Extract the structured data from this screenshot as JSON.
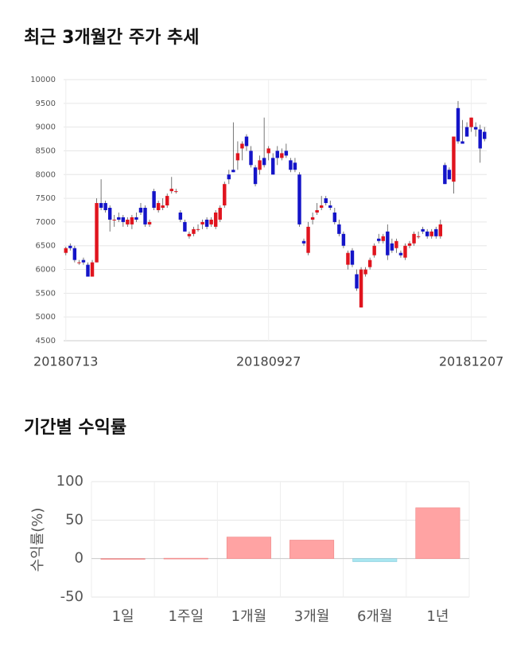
{
  "chart_data": [
    {
      "type": "candlestick",
      "title": "최근 3개월간 주가 추세",
      "categories": [
        "20180713",
        null,
        null,
        null,
        null,
        null,
        null,
        null,
        null,
        null,
        null,
        null,
        null,
        null,
        null,
        null,
        null,
        null,
        null,
        null,
        null,
        null,
        null,
        null,
        null,
        null,
        null,
        null,
        null,
        null,
        null,
        null,
        null,
        null,
        null,
        null,
        null,
        null,
        null,
        null,
        null,
        null,
        null,
        null,
        null,
        null,
        "20180927",
        null,
        null,
        null,
        null,
        null,
        null,
        null,
        null,
        null,
        null,
        null,
        null,
        null,
        null,
        null,
        null,
        null,
        null,
        null,
        null,
        null,
        null,
        null,
        null,
        null,
        null,
        null,
        null,
        null,
        null,
        null,
        null,
        null,
        null,
        null,
        null,
        null,
        null,
        null,
        null,
        null,
        null,
        null,
        null,
        null,
        "20181207",
        null,
        null,
        null
      ],
      "ohlc": [
        [
          6350,
          6480,
          6300,
          6450
        ],
        [
          6500,
          6550,
          6400,
          6450
        ],
        [
          6450,
          6500,
          6150,
          6200
        ],
        [
          6150,
          6200,
          6100,
          6150
        ],
        [
          6200,
          6250,
          6100,
          6150
        ],
        [
          6100,
          6150,
          5850,
          5850
        ],
        [
          5850,
          6200,
          5850,
          6150
        ],
        [
          6150,
          7500,
          6150,
          7400
        ],
        [
          7400,
          7900,
          7250,
          7300
        ],
        [
          7400,
          7450,
          7200,
          7250
        ],
        [
          7300,
          7350,
          6800,
          7050
        ],
        [
          7050,
          7150,
          6900,
          7050
        ],
        [
          7100,
          7200,
          7000,
          7050
        ],
        [
          7100,
          7150,
          6900,
          7000
        ],
        [
          6950,
          7100,
          6900,
          7050
        ],
        [
          6950,
          7150,
          6850,
          7100
        ],
        [
          7100,
          7200,
          7000,
          7050
        ],
        [
          7300,
          7400,
          7150,
          7200
        ],
        [
          7300,
          7350,
          6900,
          6950
        ],
        [
          6950,
          7050,
          6900,
          7000
        ],
        [
          7650,
          7700,
          7250,
          7300
        ],
        [
          7250,
          7450,
          7200,
          7400
        ],
        [
          7300,
          7500,
          7250,
          7350
        ],
        [
          7350,
          7600,
          7300,
          7550
        ],
        [
          7650,
          7950,
          7600,
          7700
        ],
        [
          7650,
          7700,
          7600,
          7650
        ],
        [
          7200,
          7250,
          7000,
          7050
        ],
        [
          7000,
          7050,
          6800,
          6800
        ],
        [
          6700,
          6800,
          6650,
          6750
        ],
        [
          6750,
          6900,
          6700,
          6850
        ],
        [
          6850,
          6950,
          6800,
          6850
        ],
        [
          6950,
          7050,
          6850,
          7000
        ],
        [
          7050,
          7100,
          6850,
          6900
        ],
        [
          6950,
          7100,
          6900,
          7050
        ],
        [
          6900,
          7250,
          6850,
          7200
        ],
        [
          7050,
          7350,
          7000,
          7300
        ],
        [
          7350,
          7850,
          7300,
          7800
        ],
        [
          8000,
          8100,
          7800,
          7900
        ],
        [
          8100,
          9100,
          8050,
          8050
        ],
        [
          8300,
          8700,
          8100,
          8450
        ],
        [
          8550,
          8700,
          8300,
          8650
        ],
        [
          8800,
          8850,
          8500,
          8600
        ],
        [
          8500,
          8600,
          8150,
          8200
        ],
        [
          8150,
          8200,
          7750,
          7800
        ],
        [
          8100,
          8400,
          8000,
          8300
        ],
        [
          8350,
          9200,
          8150,
          8200
        ],
        [
          8450,
          8600,
          8300,
          8550
        ],
        [
          8350,
          8450,
          8000,
          8000
        ],
        [
          8500,
          8600,
          8200,
          8350
        ],
        [
          8350,
          8550,
          8300,
          8450
        ],
        [
          8500,
          8650,
          8350,
          8400
        ],
        [
          8300,
          8350,
          8050,
          8100
        ],
        [
          8250,
          8350,
          8050,
          8100
        ],
        [
          8000,
          8050,
          6900,
          6950
        ],
        [
          6600,
          6650,
          6500,
          6550
        ],
        [
          6350,
          7000,
          6300,
          6900
        ],
        [
          7050,
          7200,
          6950,
          7100
        ],
        [
          7200,
          7400,
          7150,
          7250
        ],
        [
          7300,
          7550,
          7250,
          7350
        ],
        [
          7500,
          7550,
          7350,
          7400
        ],
        [
          7350,
          7450,
          7250,
          7300
        ],
        [
          7200,
          7300,
          6950,
          7000
        ],
        [
          6950,
          7050,
          6700,
          6750
        ],
        [
          6750,
          6800,
          6450,
          6500
        ],
        [
          6100,
          6400,
          6000,
          6350
        ],
        [
          6400,
          6450,
          6050,
          6100
        ],
        [
          5900,
          6000,
          5550,
          5600
        ],
        [
          5200,
          6050,
          5200,
          6000
        ],
        [
          5900,
          6050,
          5850,
          6000
        ],
        [
          6050,
          6250,
          6000,
          6200
        ],
        [
          6300,
          6550,
          6250,
          6500
        ],
        [
          6650,
          6750,
          6550,
          6600
        ],
        [
          6600,
          6750,
          6550,
          6700
        ],
        [
          6800,
          6950,
          6200,
          6300
        ],
        [
          6550,
          6650,
          6350,
          6400
        ],
        [
          6450,
          6650,
          6350,
          6600
        ],
        [
          6350,
          6400,
          6250,
          6300
        ],
        [
          6250,
          6550,
          6200,
          6500
        ],
        [
          6500,
          6600,
          6450,
          6550
        ],
        [
          6550,
          6800,
          6500,
          6750
        ],
        [
          6700,
          6800,
          6650,
          6700
        ],
        [
          6850,
          6900,
          6750,
          6800
        ],
        [
          6800,
          6850,
          6650,
          6700
        ],
        [
          6700,
          6850,
          6650,
          6800
        ],
        [
          6850,
          6900,
          6650,
          6700
        ],
        [
          6700,
          7050,
          6650,
          6950
        ],
        [
          8200,
          8250,
          7800,
          7800
        ],
        [
          8100,
          8150,
          7900,
          7900
        ],
        [
          7850,
          8800,
          7600,
          8800
        ],
        [
          9400,
          9550,
          8650,
          8700
        ],
        [
          8700,
          9150,
          8650,
          8650
        ],
        [
          9000,
          9100,
          8800,
          8800
        ],
        [
          9000,
          9200,
          8900,
          9200
        ],
        [
          9000,
          9100,
          8800,
          8950
        ],
        [
          8950,
          9050,
          8250,
          8550
        ],
        [
          8900,
          9000,
          8700,
          8750
        ]
      ],
      "up_color": "#e0141e",
      "down_color": "#1414c8",
      "ylim": [
        4500,
        10000
      ],
      "yticks": [
        4500,
        5000,
        5500,
        6000,
        6500,
        7000,
        7500,
        8000,
        8500,
        9000,
        9500,
        10000
      ],
      "grid": true
    },
    {
      "type": "bar",
      "title": "기간별 수익률",
      "ylabel": "수익률(%)",
      "categories": [
        "1일",
        "1주일",
        "1개월",
        "3개월",
        "6개월",
        "1년"
      ],
      "values": [
        0,
        0.5,
        28,
        24,
        -4,
        66
      ],
      "positive_color": "#ffa3a3",
      "negative_color": "#a8e6f0",
      "ylim": [
        -50,
        100
      ],
      "yticks": [
        -50,
        0,
        50,
        100
      ],
      "grid": true
    }
  ]
}
